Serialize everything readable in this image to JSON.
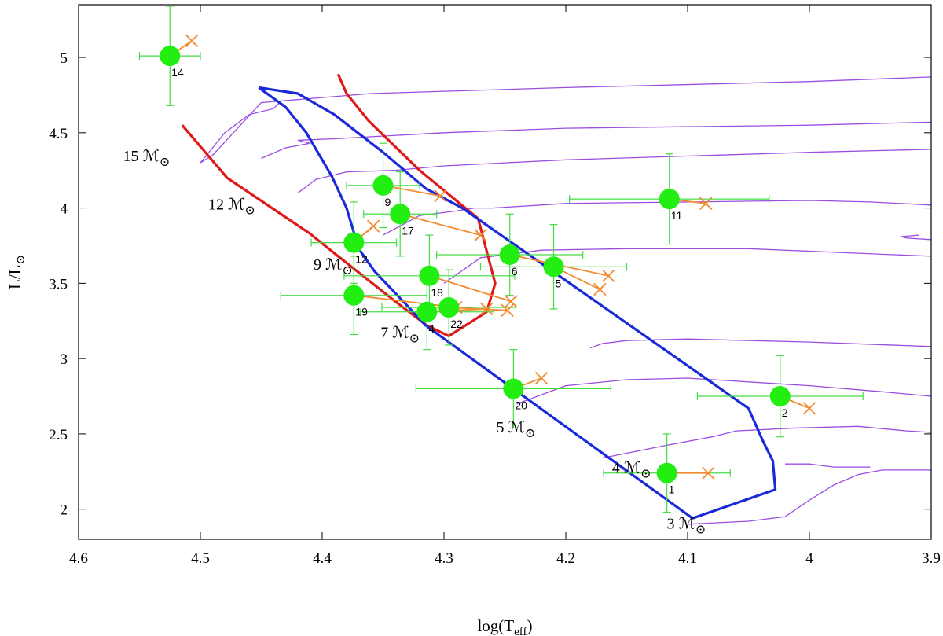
{
  "chart_data": {
    "type": "scatter",
    "xlabel": "log(T",
    "xlabel_sub": "eff",
    "xlabel_end": ")",
    "ylabel": "L/L",
    "ylabel_sub": "⊙",
    "xlim": [
      4.6,
      3.9
    ],
    "ylim": [
      1.8,
      5.35
    ],
    "x_reversed": true,
    "xticks": [
      4.6,
      4.5,
      4.4,
      4.3,
      4.2,
      4.1,
      4.0,
      3.9
    ],
    "xtick_labels": [
      "4.6",
      "4.5",
      "4.4",
      "4.3",
      "4.2",
      "4.1",
      "4",
      "3.9"
    ],
    "yticks": [
      2,
      2.5,
      3,
      3.5,
      4,
      4.5,
      5
    ],
    "ytick_labels": [
      "2",
      "2.5",
      "3",
      "3.5",
      "4",
      "4.5",
      "5"
    ],
    "grid": false,
    "colors": {
      "stars": "#22ee11",
      "errorbars": "#44dd44",
      "arrows": "#f28a2e",
      "red_line": "#e01818",
      "blue_line": "#1a2adb",
      "tracks": "#9a4de0"
    },
    "mass_labels": [
      {
        "text": "15 ℳ",
        "sym": "⊙",
        "x": 4.525,
        "y": 4.31
      },
      {
        "text": "12 ℳ",
        "sym": "⊙",
        "x": 4.455,
        "y": 3.99
      },
      {
        "text": "9 ℳ",
        "sym": "⊙",
        "x": 4.375,
        "y": 3.59
      },
      {
        "text": "7 ℳ",
        "sym": "⊙",
        "x": 4.32,
        "y": 3.14
      },
      {
        "text": "5 ℳ",
        "sym": "⊙",
        "x": 4.225,
        "y": 2.51
      },
      {
        "text": "4 ℳ",
        "sym": "⊙",
        "x": 4.13,
        "y": 2.24
      },
      {
        "text": "3 ℳ",
        "sym": "⊙",
        "x": 4.085,
        "y": 1.87
      }
    ],
    "stars": [
      {
        "id": "14",
        "x": 4.525,
        "y": 5.01,
        "xerr": 0.025,
        "yerr": 0.33,
        "tx": 4.507,
        "ty": 5.11
      },
      {
        "id": "9",
        "x": 4.35,
        "y": 4.15,
        "xerr": 0.03,
        "yerr": 0.28,
        "tx": 4.303,
        "ty": 4.08
      },
      {
        "id": "17",
        "x": 4.336,
        "y": 3.96,
        "xerr": 0.03,
        "yerr": 0.28,
        "tx": 4.27,
        "ty": 3.82
      },
      {
        "id": "12",
        "x": 4.374,
        "y": 3.77,
        "xerr": 0.035,
        "yerr": 0.27,
        "tx": 4.358,
        "ty": 3.88
      },
      {
        "id": "18",
        "x": 4.312,
        "y": 3.55,
        "xerr": 0.07,
        "yerr": 0.27,
        "tx": 4.245,
        "ty": 3.38
      },
      {
        "id": "19",
        "x": 4.374,
        "y": 3.42,
        "xerr": 0.06,
        "yerr": 0.26,
        "tx": 4.29,
        "ty": 3.34
      },
      {
        "id": "4",
        "x": 4.314,
        "y": 3.31,
        "xerr": 0.055,
        "yerr": 0.25,
        "tx": 4.265,
        "ty": 3.33
      },
      {
        "id": "22",
        "x": 4.296,
        "y": 3.34,
        "xerr": 0.055,
        "yerr": 0.25,
        "tx": 4.248,
        "ty": 3.32
      },
      {
        "id": "6",
        "x": 4.246,
        "y": 3.69,
        "xerr": 0.06,
        "yerr": 0.27,
        "tx": 4.165,
        "ty": 3.55
      },
      {
        "id": "5",
        "x": 4.21,
        "y": 3.61,
        "xerr": 0.06,
        "yerr": 0.28,
        "tx": 4.172,
        "ty": 3.46
      },
      {
        "id": "11",
        "x": 4.115,
        "y": 4.06,
        "xerr": 0.082,
        "yerr": 0.3,
        "tx": 4.085,
        "ty": 4.03
      },
      {
        "id": "20",
        "x": 4.243,
        "y": 2.8,
        "xerr": 0.08,
        "yerr": 0.26,
        "tx": 4.22,
        "ty": 2.87
      },
      {
        "id": "2",
        "x": 4.024,
        "y": 2.75,
        "xerr": 0.068,
        "yerr": 0.27,
        "tx": 4.0,
        "ty": 2.67
      },
      {
        "id": "1",
        "x": 4.117,
        "y": 2.24,
        "xerr": 0.052,
        "yerr": 0.26,
        "tx": 4.083,
        "ty": 2.24
      }
    ],
    "isochrone_red": [
      [
        4.515,
        4.55
      ],
      [
        4.478,
        4.2
      ],
      [
        4.41,
        3.83
      ],
      [
        4.39,
        3.7
      ],
      [
        4.34,
        3.38
      ],
      [
        4.314,
        3.22
      ],
      [
        4.296,
        3.15
      ],
      [
        4.265,
        3.31
      ],
      [
        4.258,
        3.5
      ],
      [
        4.272,
        3.93
      ],
      [
        4.32,
        4.25
      ],
      [
        4.362,
        4.58
      ],
      [
        4.38,
        4.76
      ],
      [
        4.387,
        4.89
      ]
    ],
    "isochrone_blue": [
      [
        4.452,
        4.8
      ],
      [
        4.43,
        4.67
      ],
      [
        4.413,
        4.5
      ],
      [
        4.392,
        4.21
      ],
      [
        4.38,
        4.0
      ],
      [
        4.37,
        3.73
      ],
      [
        4.357,
        3.58
      ],
      [
        4.33,
        3.35
      ],
      [
        4.315,
        3.22
      ],
      [
        4.096,
        1.94
      ],
      [
        4.028,
        2.13
      ],
      [
        4.03,
        2.32
      ],
      [
        4.038,
        2.45
      ],
      [
        4.05,
        2.67
      ],
      [
        4.285,
        4.0
      ],
      [
        4.315,
        4.13
      ],
      [
        4.35,
        4.37
      ],
      [
        4.39,
        4.62
      ],
      [
        4.42,
        4.76
      ],
      [
        4.452,
        4.8
      ]
    ],
    "tracks": [
      {
        "points": [
          [
            4.45,
            4.78
          ],
          [
            4.435,
            4.7
          ],
          [
            4.44,
            4.66
          ],
          [
            4.46,
            4.62
          ],
          [
            4.48,
            4.5
          ],
          [
            4.5,
            4.3
          ],
          [
            4.49,
            4.35
          ],
          [
            4.45,
            4.7
          ],
          [
            4.36,
            4.76
          ],
          [
            4.2,
            4.8
          ],
          [
            4.0,
            4.84
          ],
          [
            3.9,
            4.87
          ]
        ]
      },
      {
        "points": [
          [
            4.45,
            4.33
          ],
          [
            4.43,
            4.4
          ],
          [
            4.41,
            4.43
          ],
          [
            4.42,
            4.45
          ],
          [
            4.39,
            4.46
          ],
          [
            4.3,
            4.5
          ],
          [
            4.2,
            4.53
          ],
          [
            4.0,
            4.55
          ],
          [
            3.9,
            4.57
          ]
        ]
      },
      {
        "points": [
          [
            4.42,
            4.1
          ],
          [
            4.405,
            4.19
          ],
          [
            4.39,
            4.22
          ],
          [
            4.38,
            4.24
          ],
          [
            4.34,
            4.25
          ],
          [
            4.3,
            4.28
          ],
          [
            4.2,
            4.32
          ],
          [
            4.0,
            4.37
          ],
          [
            3.9,
            4.39
          ]
        ]
      },
      {
        "points": [
          [
            4.35,
            3.82
          ],
          [
            4.32,
            3.95
          ],
          [
            4.29,
            3.98
          ],
          [
            4.275,
            4.0
          ],
          [
            4.26,
            4.0
          ],
          [
            4.2,
            4.03
          ],
          [
            4.0,
            4.05
          ],
          [
            3.95,
            4.04
          ],
          [
            3.9,
            4.02
          ]
        ]
      },
      {
        "points": [
          [
            4.3,
            3.5
          ],
          [
            4.27,
            3.67
          ],
          [
            4.24,
            3.7
          ],
          [
            4.22,
            3.72
          ],
          [
            4.15,
            3.73
          ],
          [
            4.05,
            3.73
          ],
          [
            3.96,
            3.7
          ],
          [
            3.9,
            3.68
          ]
        ]
      },
      {
        "points": [
          [
            4.18,
            3.07
          ],
          [
            4.17,
            3.1
          ],
          [
            4.15,
            3.12
          ],
          [
            4.1,
            3.13
          ],
          [
            4.0,
            3.11
          ],
          [
            3.9,
            3.08
          ]
        ]
      },
      {
        "points": [
          [
            4.24,
            2.7
          ],
          [
            4.2,
            2.82
          ],
          [
            4.15,
            2.86
          ],
          [
            4.1,
            2.87
          ],
          [
            4.0,
            2.82
          ],
          [
            3.94,
            2.78
          ],
          [
            3.9,
            2.75
          ]
        ]
      },
      {
        "points": [
          [
            4.17,
            2.34
          ],
          [
            4.12,
            2.42
          ],
          [
            4.08,
            2.48
          ],
          [
            4.06,
            2.52
          ],
          [
            4.01,
            2.54
          ],
          [
            3.96,
            2.55
          ],
          [
            3.92,
            2.52
          ],
          [
            3.9,
            2.51
          ]
        ]
      },
      {
        "points": [
          [
            4.1,
            1.9
          ],
          [
            4.05,
            1.92
          ],
          [
            4.02,
            1.95
          ],
          [
            4.0,
            2.06
          ],
          [
            3.98,
            2.16
          ],
          [
            3.96,
            2.23
          ],
          [
            3.94,
            2.26
          ],
          [
            3.9,
            2.26
          ]
        ]
      },
      {
        "points": [
          [
            3.91,
            3.82
          ],
          [
            3.925,
            3.81
          ],
          [
            3.92,
            3.8
          ],
          [
            3.9,
            3.79
          ]
        ]
      },
      {
        "points": [
          [
            4.02,
            2.3
          ],
          [
            4.0,
            2.3
          ],
          [
            3.98,
            2.28
          ],
          [
            3.95,
            2.28
          ]
        ]
      }
    ]
  }
}
